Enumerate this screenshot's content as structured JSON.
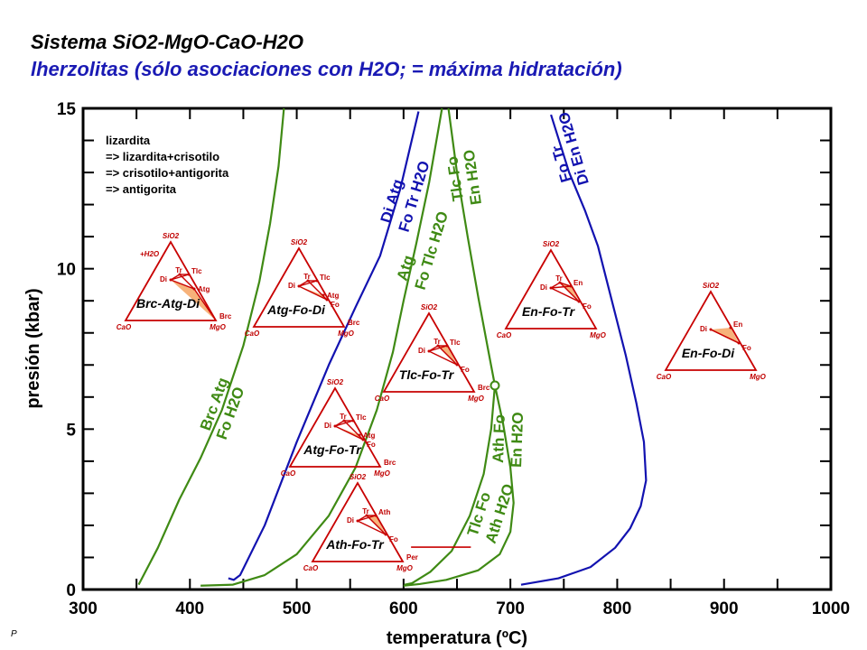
{
  "title": "Sistema SiO2-MgO-CaO-H2O",
  "subtitle": "lherzolitas (sólo asociaciones con H2O; = máxima hidratación)",
  "footnote": "P",
  "chart_data": {
    "type": "line",
    "xlabel": "temperatura (ºC)",
    "ylabel": "presión (kbar)",
    "xlim": [
      300,
      1000
    ],
    "ylim": [
      0,
      15
    ],
    "xticks": [
      "300",
      "400",
      "500",
      "600",
      "700",
      "800",
      "900",
      "1000"
    ],
    "yticks": [
      "0",
      "5",
      "10",
      "15"
    ],
    "grid": false,
    "colors": {
      "green": "#3f8a14",
      "blue": "#1212b0",
      "red": "#c80000",
      "fill": "#f7b27a"
    },
    "legend_text": [
      "lizardita",
      "=> lizardita+crisotilo",
      "=> crisotilo+antigorita",
      "=> antigorita"
    ],
    "series": [
      {
        "color": "green",
        "labels": [
          "Brc Atg",
          "Fo H2O"
        ],
        "points": [
          [
            352,
            0.15
          ],
          [
            370,
            1.3
          ],
          [
            390,
            2.8
          ],
          [
            410,
            4.1
          ],
          [
            430,
            5.6
          ],
          [
            450,
            7.6
          ],
          [
            465,
            9.6
          ],
          [
            475,
            11.4
          ],
          [
            483,
            13.2
          ],
          [
            488,
            15
          ]
        ]
      },
      {
        "color": "blue",
        "labels": [
          "Di Atg",
          "Fo Tr H2O"
        ],
        "points": [
          [
            436,
            0.35
          ],
          [
            441,
            0.3
          ],
          [
            447,
            0.45
          ],
          [
            470,
            2
          ],
          [
            500,
            4.6
          ],
          [
            530,
            7
          ],
          [
            555,
            8.8
          ],
          [
            578,
            10.4
          ],
          [
            597,
            12.5
          ],
          [
            614,
            14.9
          ]
        ]
      },
      {
        "color": "green",
        "labels": [
          "Atg",
          "Fo Tlc H2O"
        ],
        "points": [
          [
            410,
            0.12
          ],
          [
            440,
            0.15
          ],
          [
            470,
            0.45
          ],
          [
            500,
            1.1
          ],
          [
            530,
            2.3
          ],
          [
            555,
            3.8
          ],
          [
            575,
            5.6
          ],
          [
            590,
            7.4
          ],
          [
            600,
            9
          ],
          [
            612,
            10.8
          ],
          [
            624,
            12.7
          ],
          [
            636,
            15
          ]
        ]
      },
      {
        "color": "green",
        "labels": [
          "Tlc Fo",
          "En H2O"
        ],
        "points": [
          [
            642,
            15
          ],
          [
            650,
            13
          ],
          [
            660,
            11
          ],
          [
            670,
            9.1
          ],
          [
            679,
            7.5
          ],
          [
            685.5,
            6.36
          ]
        ]
      },
      {
        "color": "green",
        "labels": [
          "Tlc Fo",
          "Ath H2O"
        ],
        "points": [
          [
            685.5,
            6.36
          ],
          [
            682,
            5
          ],
          [
            675,
            3.6
          ],
          [
            662,
            2.3
          ],
          [
            645,
            1.2
          ],
          [
            625,
            0.55
          ],
          [
            608,
            0.2
          ],
          [
            601,
            0.15
          ]
        ]
      },
      {
        "color": "green",
        "labels": [
          "Ath Fo",
          "En H2O"
        ],
        "points": [
          [
            685.5,
            6.36
          ],
          [
            693,
            5.2
          ],
          [
            700,
            3.8
          ],
          [
            703,
            2.7
          ],
          [
            700,
            1.8
          ],
          [
            690,
            1.1
          ],
          [
            670,
            0.6
          ],
          [
            640,
            0.3
          ],
          [
            615,
            0.17
          ],
          [
            600,
            0.12
          ]
        ]
      },
      {
        "color": "blue",
        "labels": [
          "Fo Tr",
          "Di En H2O"
        ],
        "points": [
          [
            738,
            14.8
          ],
          [
            755,
            13
          ],
          [
            770,
            11.8
          ],
          [
            782,
            10.7
          ],
          [
            795,
            9
          ],
          [
            808,
            7.3
          ],
          [
            818,
            5.8
          ],
          [
            825,
            4.6
          ],
          [
            827,
            3.4
          ],
          [
            822,
            2.6
          ],
          [
            812,
            1.9
          ],
          [
            798,
            1.3
          ],
          [
            775,
            0.7
          ],
          [
            745,
            0.35
          ],
          [
            710,
            0.15
          ]
        ]
      }
    ],
    "red_segment": [
      [
        607,
        1.32
      ],
      [
        663,
        1.32
      ]
    ],
    "invariant_point": [
      685.5,
      6.36
    ]
  },
  "triangles": [
    {
      "name": "Brc-Atg-Di",
      "apex": "SiO2",
      "left": "CaO",
      "right": "MgO",
      "extra": "+H2O",
      "corner": "Brc",
      "inner": [
        "Di",
        "Tr",
        "Tlc",
        "Atg"
      ]
    },
    {
      "name": "Atg-Fo-Di",
      "apex": "SiO2",
      "left": "CaO",
      "right": "MgO",
      "corner": "Brc",
      "inner": [
        "Di",
        "Tr",
        "Tlc",
        "Atg",
        "Fo"
      ]
    },
    {
      "name": "Tlc-Fo-Tr",
      "apex": "SiO2",
      "left": "CaO",
      "right": "MgO",
      "corner": "Brc",
      "inner": [
        "Di",
        "Tr",
        "Tlc",
        "Fo"
      ]
    },
    {
      "name": "Atg-Fo-Tr",
      "apex": "SiO2",
      "left": "CaO",
      "right": "MgO",
      "corner": "Brc",
      "inner": [
        "Di",
        "Tr",
        "Tlc",
        "Atg",
        "Fo"
      ]
    },
    {
      "name": "Ath-Fo-Tr",
      "apex": "SiO2",
      "left": "CaO",
      "right": "MgO",
      "corner": "Per",
      "inner": [
        "Di",
        "Tr",
        "Ath",
        "Fo"
      ]
    },
    {
      "name": "En-Fo-Tr",
      "apex": "SiO2",
      "left": "CaO",
      "right": "MgO",
      "inner": [
        "Di",
        "Tr",
        "En",
        "Fo"
      ]
    },
    {
      "name": "En-Fo-Di",
      "apex": "SiO2",
      "left": "CaO",
      "right": "MgO",
      "inner": [
        "Di",
        "En",
        "Fo"
      ]
    }
  ]
}
